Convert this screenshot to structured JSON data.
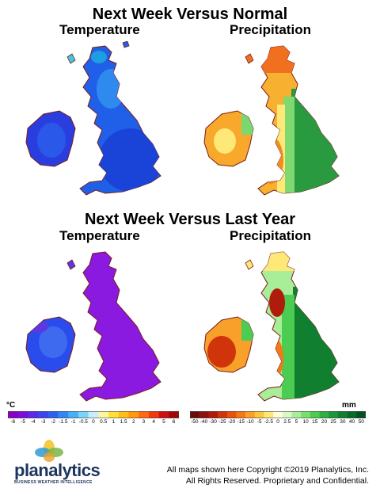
{
  "sections": [
    {
      "title": "Next Week Versus Normal",
      "maps": [
        {
          "label": "Temperature",
          "scheme": "temp_normal"
        },
        {
          "label": "Precipitation",
          "scheme": "precip_normal"
        }
      ]
    },
    {
      "title": "Next Week Versus Last Year",
      "maps": [
        {
          "label": "Temperature",
          "scheme": "temp_lastyear"
        },
        {
          "label": "Precipitation",
          "scheme": "precip_lastyear"
        }
      ]
    }
  ],
  "legends": {
    "temperature": {
      "unit": "°C",
      "ticks": [
        "-6",
        "-5",
        "-4",
        "-3",
        "-2",
        "-1.5",
        "-1",
        "-0.5",
        "0",
        "0.5",
        "1",
        "1.5",
        "2",
        "3",
        "4",
        "5",
        "6"
      ],
      "colors": [
        "#8a00c8",
        "#7a10d8",
        "#5a2ae8",
        "#3a45f0",
        "#2a62f0",
        "#2f88f5",
        "#45b0f8",
        "#7ad3fb",
        "#c8eefb",
        "#fff4a0",
        "#ffdf3a",
        "#ffbe1a",
        "#ff9a10",
        "#ff6a10",
        "#f03a10",
        "#d01010",
        "#a00808"
      ]
    },
    "precipitation": {
      "unit": "mm",
      "ticks": [
        "-50",
        "-40",
        "-30",
        "-25",
        "-20",
        "-15",
        "-10",
        "-5",
        "-2.5",
        "0",
        "2.5",
        "5",
        "10",
        "15",
        "20",
        "25",
        "30",
        "40",
        "50"
      ],
      "colors": [
        "#6a0c0c",
        "#8c1410",
        "#b01c0c",
        "#d0340a",
        "#e8520a",
        "#f4781a",
        "#f8a02a",
        "#fcc640",
        "#fde878",
        "#fffcd8",
        "#d8f8c8",
        "#a8ee98",
        "#78de70",
        "#4ccc50",
        "#30b040",
        "#20963a",
        "#108030",
        "#066a28",
        "#025020"
      ]
    }
  },
  "copyright": {
    "line1": "All maps shown here Copyright ©2019 Planalytics, Inc.",
    "line2": "All Rights Reserved. Proprietary and Confidential."
  },
  "logo": {
    "name": "planalytics",
    "tagline": "BUSINESS WEATHER INTELLIGENCE"
  }
}
